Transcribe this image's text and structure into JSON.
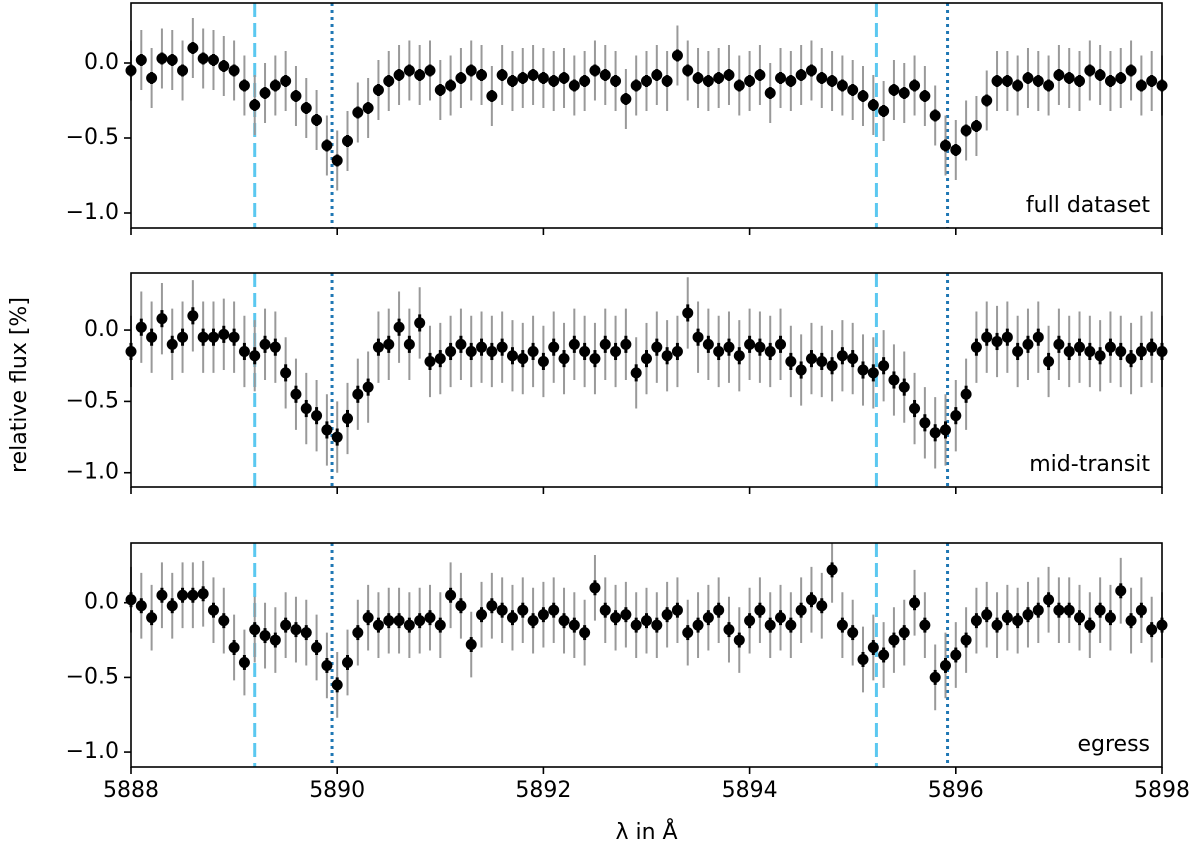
{
  "chart_data": [
    {
      "type": "errorbar",
      "annotation": "full dataset",
      "x": [
        5888.0,
        5888.1,
        5888.2,
        5888.3,
        5888.4,
        5888.5,
        5888.6,
        5888.7,
        5888.8,
        5888.9,
        5889.0,
        5889.1,
        5889.2,
        5889.3,
        5889.4,
        5889.5,
        5889.6,
        5889.7,
        5889.8,
        5889.9,
        5890.0,
        5890.1,
        5890.2,
        5890.3,
        5890.4,
        5890.5,
        5890.6,
        5890.7,
        5890.8,
        5890.9,
        5891.0,
        5891.1,
        5891.2,
        5891.3,
        5891.4,
        5891.5,
        5891.6,
        5891.7,
        5891.8,
        5891.9,
        5892.0,
        5892.1,
        5892.2,
        5892.3,
        5892.4,
        5892.5,
        5892.6,
        5892.7,
        5892.8,
        5892.9,
        5893.0,
        5893.1,
        5893.2,
        5893.3,
        5893.4,
        5893.5,
        5893.6,
        5893.7,
        5893.8,
        5893.9,
        5894.0,
        5894.1,
        5894.2,
        5894.3,
        5894.4,
        5894.5,
        5894.6,
        5894.7,
        5894.8,
        5894.9,
        5895.0,
        5895.1,
        5895.2,
        5895.3,
        5895.4,
        5895.5,
        5895.6,
        5895.7,
        5895.8,
        5895.9,
        5896.0,
        5896.1,
        5896.2,
        5896.3,
        5896.4,
        5896.5,
        5896.6,
        5896.7,
        5896.8,
        5896.9,
        5897.0,
        5897.1,
        5897.2,
        5897.3,
        5897.4,
        5897.5,
        5897.6,
        5897.7,
        5897.8,
        5897.9,
        5898.0
      ],
      "values": [
        -0.05,
        0.02,
        -0.1,
        0.03,
        0.02,
        -0.05,
        0.1,
        0.03,
        0.02,
        -0.02,
        -0.05,
        -0.15,
        -0.28,
        -0.2,
        -0.15,
        -0.12,
        -0.22,
        -0.3,
        -0.38,
        -0.55,
        -0.65,
        -0.52,
        -0.33,
        -0.3,
        -0.18,
        -0.12,
        -0.08,
        -0.05,
        -0.08,
        -0.05,
        -0.18,
        -0.15,
        -0.1,
        -0.05,
        -0.08,
        -0.22,
        -0.08,
        -0.12,
        -0.1,
        -0.08,
        -0.1,
        -0.12,
        -0.1,
        -0.15,
        -0.12,
        -0.05,
        -0.08,
        -0.12,
        -0.24,
        -0.15,
        -0.12,
        -0.08,
        -0.12,
        0.05,
        -0.05,
        -0.1,
        -0.12,
        -0.1,
        -0.08,
        -0.15,
        -0.12,
        -0.08,
        -0.2,
        -0.1,
        -0.12,
        -0.08,
        -0.05,
        -0.1,
        -0.12,
        -0.15,
        -0.18,
        -0.22,
        -0.28,
        -0.32,
        -0.18,
        -0.2,
        -0.15,
        -0.22,
        -0.35,
        -0.55,
        -0.58,
        -0.45,
        -0.42,
        -0.25,
        -0.12,
        -0.12,
        -0.15,
        -0.1,
        -0.12,
        -0.15,
        -0.08,
        -0.1,
        -0.12,
        -0.05,
        -0.08,
        -0.12,
        -0.1,
        -0.05,
        -0.15,
        -0.12,
        -0.15
      ],
      "error": 0.04,
      "raw_error": 0.2,
      "color": "#000000",
      "raw_color": "#999999",
      "vlines": [
        {
          "x": 5889.2,
          "style": "dashed",
          "color": "#5bc8f0"
        },
        {
          "x": 5889.95,
          "style": "dotted",
          "color": "#1f77b4"
        },
        {
          "x": 5895.23,
          "style": "dashed",
          "color": "#5bc8f0"
        },
        {
          "x": 5895.92,
          "style": "dotted",
          "color": "#1f77b4"
        }
      ],
      "xlim": [
        5888,
        5898
      ],
      "xticks": [
        5888,
        5890,
        5892,
        5894,
        5896,
        5898
      ],
      "show_xticklabels": false,
      "ylim": [
        -1.1,
        0.4
      ],
      "yticks": [
        {
          "value": -1.0,
          "label": "−1.0"
        },
        {
          "value": -0.5,
          "label": "−0.5"
        },
        {
          "value": 0.0,
          "label": "0.0"
        }
      ]
    },
    {
      "type": "errorbar",
      "annotation": "mid-transit",
      "ylabel": "relative flux [%]",
      "x": [
        5888.0,
        5888.1,
        5888.2,
        5888.3,
        5888.4,
        5888.5,
        5888.6,
        5888.7,
        5888.8,
        5888.9,
        5889.0,
        5889.1,
        5889.2,
        5889.3,
        5889.4,
        5889.5,
        5889.6,
        5889.7,
        5889.8,
        5889.9,
        5890.0,
        5890.1,
        5890.2,
        5890.3,
        5890.4,
        5890.5,
        5890.6,
        5890.7,
        5890.8,
        5890.9,
        5891.0,
        5891.1,
        5891.2,
        5891.3,
        5891.4,
        5891.5,
        5891.6,
        5891.7,
        5891.8,
        5891.9,
        5892.0,
        5892.1,
        5892.2,
        5892.3,
        5892.4,
        5892.5,
        5892.6,
        5892.7,
        5892.8,
        5892.9,
        5893.0,
        5893.1,
        5893.2,
        5893.3,
        5893.4,
        5893.5,
        5893.6,
        5893.7,
        5893.8,
        5893.9,
        5894.0,
        5894.1,
        5894.2,
        5894.3,
        5894.4,
        5894.5,
        5894.6,
        5894.7,
        5894.8,
        5894.9,
        5895.0,
        5895.1,
        5895.2,
        5895.3,
        5895.4,
        5895.5,
        5895.6,
        5895.7,
        5895.8,
        5895.9,
        5896.0,
        5896.1,
        5896.2,
        5896.3,
        5896.4,
        5896.5,
        5896.6,
        5896.7,
        5896.8,
        5896.9,
        5897.0,
        5897.1,
        5897.2,
        5897.3,
        5897.4,
        5897.5,
        5897.6,
        5897.7,
        5897.8,
        5897.9,
        5898.0
      ],
      "values": [
        -0.15,
        0.02,
        -0.05,
        0.08,
        -0.1,
        -0.05,
        0.1,
        -0.05,
        -0.05,
        -0.03,
        -0.05,
        -0.15,
        -0.18,
        -0.1,
        -0.12,
        -0.3,
        -0.45,
        -0.55,
        -0.6,
        -0.7,
        -0.75,
        -0.62,
        -0.45,
        -0.4,
        -0.12,
        -0.1,
        0.02,
        -0.1,
        0.05,
        -0.22,
        -0.2,
        -0.15,
        -0.1,
        -0.15,
        -0.12,
        -0.15,
        -0.12,
        -0.18,
        -0.2,
        -0.15,
        -0.22,
        -0.12,
        -0.2,
        -0.1,
        -0.15,
        -0.2,
        -0.1,
        -0.15,
        -0.1,
        -0.3,
        -0.2,
        -0.12,
        -0.18,
        -0.15,
        0.12,
        -0.05,
        -0.1,
        -0.15,
        -0.12,
        -0.18,
        -0.1,
        -0.12,
        -0.15,
        -0.1,
        -0.22,
        -0.28,
        -0.2,
        -0.22,
        -0.25,
        -0.18,
        -0.2,
        -0.28,
        -0.3,
        -0.25,
        -0.35,
        -0.4,
        -0.55,
        -0.65,
        -0.72,
        -0.7,
        -0.6,
        -0.45,
        -0.12,
        -0.05,
        -0.08,
        -0.05,
        -0.15,
        -0.1,
        -0.05,
        -0.22,
        -0.1,
        -0.15,
        -0.12,
        -0.15,
        -0.18,
        -0.12,
        -0.15,
        -0.2,
        -0.15,
        -0.12,
        -0.15
      ],
      "error": 0.06,
      "raw_error": 0.25,
      "color": "#000000",
      "raw_color": "#999999",
      "vlines": [
        {
          "x": 5889.2,
          "style": "dashed",
          "color": "#5bc8f0"
        },
        {
          "x": 5889.95,
          "style": "dotted",
          "color": "#1f77b4"
        },
        {
          "x": 5895.23,
          "style": "dashed",
          "color": "#5bc8f0"
        },
        {
          "x": 5895.92,
          "style": "dotted",
          "color": "#1f77b4"
        }
      ],
      "xlim": [
        5888,
        5898
      ],
      "xticks": [
        5888,
        5890,
        5892,
        5894,
        5896,
        5898
      ],
      "show_xticklabels": false,
      "ylim": [
        -1.1,
        0.4
      ],
      "yticks": [
        {
          "value": -1.0,
          "label": "−1.0"
        },
        {
          "value": -0.5,
          "label": "−0.5"
        },
        {
          "value": 0.0,
          "label": "0.0"
        }
      ]
    },
    {
      "type": "errorbar",
      "annotation": "egress",
      "xlabel": "λ in Å",
      "x": [
        5888.0,
        5888.1,
        5888.2,
        5888.3,
        5888.4,
        5888.5,
        5888.6,
        5888.7,
        5888.8,
        5888.9,
        5889.0,
        5889.1,
        5889.2,
        5889.3,
        5889.4,
        5889.5,
        5889.6,
        5889.7,
        5889.8,
        5889.9,
        5890.0,
        5890.1,
        5890.2,
        5890.3,
        5890.4,
        5890.5,
        5890.6,
        5890.7,
        5890.8,
        5890.9,
        5891.0,
        5891.1,
        5891.2,
        5891.3,
        5891.4,
        5891.5,
        5891.6,
        5891.7,
        5891.8,
        5891.9,
        5892.0,
        5892.1,
        5892.2,
        5892.3,
        5892.4,
        5892.5,
        5892.6,
        5892.7,
        5892.8,
        5892.9,
        5893.0,
        5893.1,
        5893.2,
        5893.3,
        5893.4,
        5893.5,
        5893.6,
        5893.7,
        5893.8,
        5893.9,
        5894.0,
        5894.1,
        5894.2,
        5894.3,
        5894.4,
        5894.5,
        5894.6,
        5894.7,
        5894.8,
        5894.9,
        5895.0,
        5895.1,
        5895.2,
        5895.3,
        5895.4,
        5895.5,
        5895.6,
        5895.7,
        5895.8,
        5895.9,
        5896.0,
        5896.1,
        5896.2,
        5896.3,
        5896.4,
        5896.5,
        5896.6,
        5896.7,
        5896.8,
        5896.9,
        5897.0,
        5897.1,
        5897.2,
        5897.3,
        5897.4,
        5897.5,
        5897.6,
        5897.7,
        5897.8,
        5897.9,
        5898.0
      ],
      "values": [
        0.02,
        -0.02,
        -0.1,
        0.05,
        -0.02,
        0.05,
        0.05,
        0.06,
        -0.05,
        -0.12,
        -0.3,
        -0.4,
        -0.18,
        -0.22,
        -0.25,
        -0.15,
        -0.18,
        -0.2,
        -0.3,
        -0.42,
        -0.55,
        -0.4,
        -0.2,
        -0.1,
        -0.15,
        -0.12,
        -0.12,
        -0.15,
        -0.12,
        -0.1,
        -0.15,
        0.05,
        -0.02,
        -0.28,
        -0.08,
        -0.02,
        -0.05,
        -0.1,
        -0.05,
        -0.12,
        -0.08,
        -0.05,
        -0.12,
        -0.15,
        -0.2,
        0.1,
        -0.05,
        -0.1,
        -0.08,
        -0.15,
        -0.12,
        -0.15,
        -0.08,
        -0.05,
        -0.2,
        -0.15,
        -0.1,
        -0.05,
        -0.18,
        -0.25,
        -0.12,
        -0.05,
        -0.15,
        -0.1,
        -0.15,
        -0.05,
        0.02,
        -0.02,
        0.22,
        -0.15,
        -0.2,
        -0.38,
        -0.3,
        -0.35,
        -0.25,
        -0.2,
        0.0,
        -0.15,
        -0.5,
        -0.42,
        -0.35,
        -0.25,
        -0.12,
        -0.08,
        -0.15,
        -0.1,
        -0.12,
        -0.08,
        -0.05,
        0.02,
        -0.05,
        -0.05,
        -0.1,
        -0.15,
        -0.05,
        -0.1,
        0.08,
        -0.12,
        -0.05,
        -0.18,
        -0.15
      ],
      "error": 0.05,
      "raw_error": 0.22,
      "color": "#000000",
      "raw_color": "#999999",
      "vlines": [
        {
          "x": 5889.2,
          "style": "dashed",
          "color": "#5bc8f0"
        },
        {
          "x": 5889.95,
          "style": "dotted",
          "color": "#1f77b4"
        },
        {
          "x": 5895.23,
          "style": "dashed",
          "color": "#5bc8f0"
        },
        {
          "x": 5895.92,
          "style": "dotted",
          "color": "#1f77b4"
        }
      ],
      "xlim": [
        5888,
        5898
      ],
      "xticks": [
        5888,
        5890,
        5892,
        5894,
        5896,
        5898
      ],
      "show_xticklabels": true,
      "ylim": [
        -1.1,
        0.4
      ],
      "yticks": [
        {
          "value": -1.0,
          "label": "−1.0"
        },
        {
          "value": -0.5,
          "label": "−0.5"
        },
        {
          "value": 0.0,
          "label": "0.0"
        }
      ]
    }
  ]
}
